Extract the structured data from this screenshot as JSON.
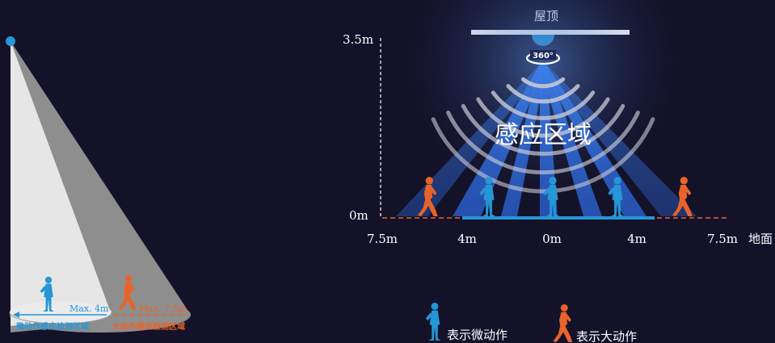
{
  "colors": {
    "background": "#141228",
    "blue": "#2596d6",
    "orange": "#e8632a",
    "white": "#ffffff",
    "cone_light": "#e6e6e6",
    "cone_dark": "#8e8e8e"
  },
  "left_panel": {
    "micro_range_label": "Max. 4m",
    "macro_range_label": "Max. 7.5m",
    "micro_zone_label": "微动作感应检测区域",
    "macro_zone_label": "大动作感应检测区域"
  },
  "right_panel": {
    "ceiling_label": "屋顶",
    "rotation_label": "360°",
    "zone_title": "感应区域",
    "height_top_label": "3.5m",
    "height_bottom_label": "0m",
    "ground_label": "地面",
    "x_ticks": [
      {
        "label": "7.5m",
        "value": -7.5
      },
      {
        "label": "4m",
        "value": -4
      },
      {
        "label": "0m",
        "value": 0
      },
      {
        "label": "4m",
        "value": 4
      },
      {
        "label": "7.5m",
        "value": 7.5
      }
    ]
  },
  "legend": {
    "micro_label": "表示微动作",
    "macro_label": "表示大动作"
  }
}
